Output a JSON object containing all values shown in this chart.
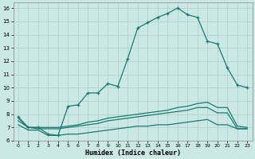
{
  "xlabel": "Humidex (Indice chaleur)",
  "bg_color": "#cce8e4",
  "line_color": "#1a7a6e",
  "grid_color": "#aed4cf",
  "ylim": [
    6,
    16.4
  ],
  "xlim": [
    -0.5,
    23.5
  ],
  "yticks": [
    6,
    7,
    8,
    9,
    10,
    11,
    12,
    13,
    14,
    15,
    16
  ],
  "xticks": [
    0,
    1,
    2,
    3,
    4,
    5,
    6,
    7,
    8,
    9,
    10,
    11,
    12,
    13,
    14,
    15,
    16,
    17,
    18,
    19,
    20,
    21,
    22,
    23
  ],
  "line1_x": [
    0,
    1,
    2,
    3,
    4,
    5,
    6,
    7,
    8,
    9,
    10,
    11,
    12,
    13,
    14,
    15,
    16,
    17,
    18,
    19,
    20,
    21,
    22,
    23
  ],
  "line1_y": [
    7.8,
    7.0,
    7.0,
    6.5,
    6.4,
    8.6,
    8.7,
    9.6,
    9.6,
    10.3,
    10.1,
    12.2,
    14.5,
    14.9,
    15.3,
    15.6,
    16.0,
    15.5,
    15.3,
    13.5,
    13.3,
    11.5,
    10.2,
    10.0
  ],
  "line1_markers": [
    0,
    1,
    2,
    3,
    4,
    5,
    6,
    7,
    8,
    9,
    10,
    11,
    12,
    13,
    14,
    15,
    16,
    17,
    18,
    19,
    20,
    21,
    22,
    23
  ],
  "line2_x": [
    0,
    1,
    2,
    3,
    4,
    5,
    6,
    7,
    8,
    9,
    10,
    11,
    12,
    13,
    14,
    15,
    16,
    17,
    18,
    19,
    20,
    21,
    22,
    23
  ],
  "line2_y": [
    7.7,
    7.0,
    7.0,
    7.0,
    7.0,
    7.1,
    7.2,
    7.4,
    7.5,
    7.7,
    7.8,
    7.9,
    8.0,
    8.1,
    8.2,
    8.3,
    8.5,
    8.6,
    8.8,
    8.9,
    8.5,
    8.5,
    7.1,
    7.0
  ],
  "line3_x": [
    0,
    1,
    2,
    3,
    4,
    5,
    6,
    7,
    8,
    9,
    10,
    11,
    12,
    13,
    14,
    15,
    16,
    17,
    18,
    19,
    20,
    21,
    22,
    23
  ],
  "line3_y": [
    7.5,
    7.0,
    6.9,
    6.9,
    6.9,
    7.0,
    7.1,
    7.2,
    7.3,
    7.5,
    7.6,
    7.7,
    7.8,
    7.9,
    8.0,
    8.1,
    8.2,
    8.3,
    8.5,
    8.5,
    8.1,
    8.1,
    6.9,
    6.9
  ],
  "line4_x": [
    0,
    1,
    2,
    3,
    4,
    5,
    6,
    7,
    8,
    9,
    10,
    11,
    12,
    13,
    14,
    15,
    16,
    17,
    18,
    19,
    20,
    21,
    22,
    23
  ],
  "line4_y": [
    7.2,
    6.8,
    6.8,
    6.4,
    6.4,
    6.5,
    6.5,
    6.6,
    6.7,
    6.8,
    6.9,
    7.0,
    7.1,
    7.1,
    7.2,
    7.2,
    7.3,
    7.4,
    7.5,
    7.6,
    7.2,
    7.2,
    6.9,
    6.9
  ]
}
